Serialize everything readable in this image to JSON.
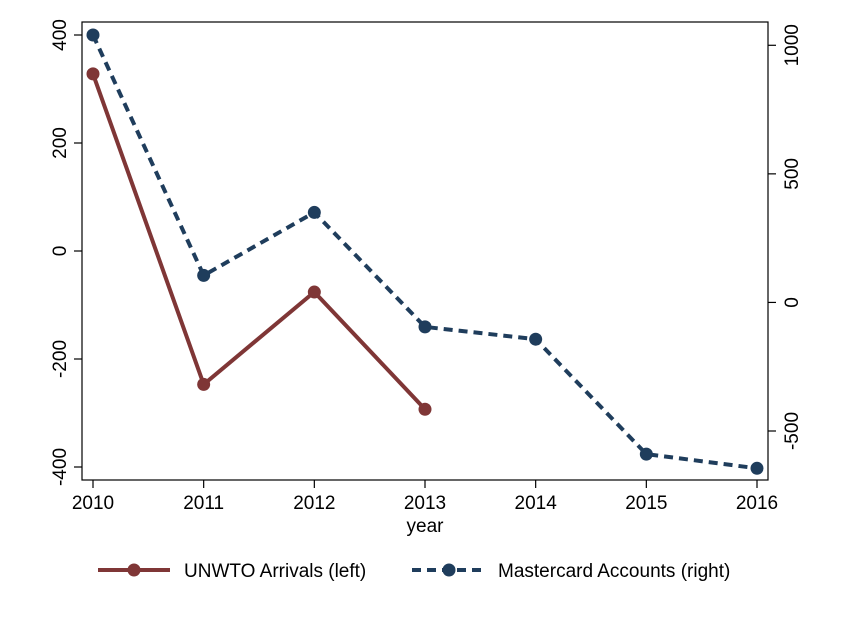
{
  "chart_data": {
    "type": "line",
    "xlabel": "year",
    "x": [
      2010,
      2011,
      2012,
      2013,
      2014,
      2015,
      2016
    ],
    "x_ticks": [
      "2010",
      "2011",
      "2012",
      "2013",
      "2014",
      "2015",
      "2016"
    ],
    "xlim": [
      2010,
      2016
    ],
    "y_left": {
      "ylim": [
        -400,
        400
      ],
      "ticks": [
        400,
        200,
        0,
        -200,
        -400
      ],
      "tick_labels": [
        "400",
        "200",
        "0",
        "-200",
        "-400"
      ]
    },
    "y_right": {
      "ylim": [
        -640,
        1040
      ],
      "ticks": [
        1000,
        500,
        0,
        -500
      ],
      "tick_labels": [
        "1000",
        "500",
        "0",
        "-500"
      ]
    },
    "grid": false,
    "legend_position": "bottom",
    "series": [
      {
        "name": "UNWTO Arrivals (left)",
        "axis": "left",
        "color": "#7f3636",
        "style": "solid",
        "x": [
          2010,
          2011,
          2012,
          2013
        ],
        "values": [
          328,
          -247,
          -76,
          -293
        ]
      },
      {
        "name": "Mastercard Accounts (right)",
        "axis": "right",
        "color": "#1f3d5c",
        "style": "dashed",
        "x": [
          2010,
          2011,
          2012,
          2013,
          2014,
          2015,
          2016
        ],
        "values": [
          1040,
          105,
          350,
          -95,
          -143,
          -590,
          -645
        ]
      }
    ]
  }
}
